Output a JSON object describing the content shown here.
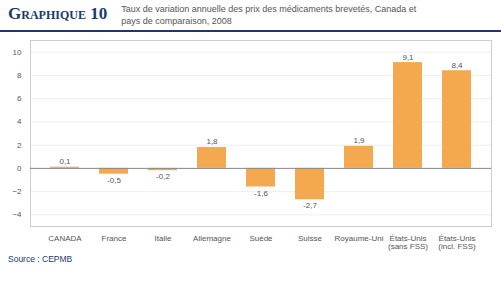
{
  "chart_data": {
    "type": "bar",
    "title": "Graphique 10",
    "subtitle": "Taux de variation annuelle des prix des médicaments brevetés, Canada et\npays de comparaison, 2008",
    "source": "Source : CEPMB",
    "categories": [
      "CANADA",
      "France",
      "Italie",
      "Allemagne",
      "Suède",
      "Suisse",
      "Royaume-Uni",
      "États-Unis\n(sans FSS)",
      "États-Unis\n(incl. FSS)"
    ],
    "values": [
      0.1,
      -0.5,
      -0.2,
      1.8,
      -1.6,
      -2.7,
      1.9,
      9.1,
      8.4
    ],
    "value_labels": [
      "0,1",
      "-0,5",
      "-0,2",
      "1,8",
      "-1,6",
      "-2,7",
      "1,9",
      "9,1",
      "8,4"
    ],
    "data_labels": true,
    "color": "#F5A94E",
    "ylim": [
      -5,
      11
    ],
    "yticks": [
      -4,
      -2,
      0,
      2,
      4,
      6,
      8,
      10
    ],
    "grid": true
  }
}
